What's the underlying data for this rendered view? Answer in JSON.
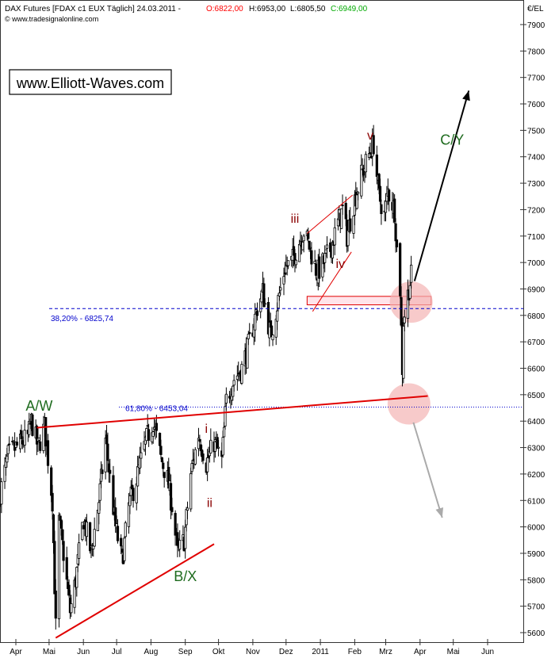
{
  "header": {
    "title": "DAX Futures [FDAX c1 EUX  Täglich] 24.03.2011 -",
    "open": "O:6822,00",
    "high": "H:6953,00",
    "low": "L:6805,50",
    "close": "C:6949,00",
    "copyright": "© www.tradesignalonline.com",
    "unit": "€/EL",
    "watermark": "www.Elliott-Waves.com"
  },
  "colors": {
    "open": "#ff0000",
    "close": "#00aa00",
    "wave_red": "#8b0000",
    "wave_green": "#1e6b1e",
    "trend_line": "#e00000",
    "fib_line": "#0000cc",
    "zone_fill": "#f4b4b4",
    "arrow_up": "#000000",
    "arrow_down": "#aaaaaa"
  },
  "chart_data": {
    "type": "candlestick",
    "title": "DAX Futures",
    "ylim": [
      5565,
      7980
    ],
    "yticks": [
      5600,
      5700,
      5800,
      5900,
      6000,
      6100,
      6200,
      6300,
      6400,
      6500,
      6600,
      6700,
      6800,
      6900,
      7000,
      7100,
      7200,
      7300,
      7400,
      7500,
      7600,
      7700,
      7800,
      7900
    ],
    "xticks": [
      "Apr",
      "Mai",
      "Jun",
      "Jul",
      "Aug",
      "Sep",
      "Okt",
      "Nov",
      "Dez",
      "2011",
      "Feb",
      "Mrz",
      "Apr",
      "Mai",
      "Jun"
    ],
    "xtick_dates": [
      "2010-04-01",
      "2010-05-01",
      "2010-06-01",
      "2010-07-01",
      "2010-08-01",
      "2010-09-01",
      "2010-10-01",
      "2010-11-01",
      "2010-12-01",
      "2011-01-01",
      "2011-02-01",
      "2011-03-01",
      "2011-04-01",
      "2011-05-01",
      "2011-06-01"
    ],
    "close_path": [
      [
        "2010-03-18",
        6130
      ],
      [
        "2010-03-25",
        6270
      ],
      [
        "2010-04-01",
        6300
      ],
      [
        "2010-04-12",
        6340
      ],
      [
        "2010-04-15",
        6400
      ],
      [
        "2010-04-21",
        6300
      ],
      [
        "2010-04-27",
        6380
      ],
      [
        "2010-05-04",
        6100
      ],
      [
        "2010-05-07",
        5620
      ],
      [
        "2010-05-10",
        6020
      ],
      [
        "2010-05-14",
        5900
      ],
      [
        "2010-05-20",
        5680
      ],
      [
        "2010-05-25",
        5800
      ],
      [
        "2010-06-01",
        6030
      ],
      [
        "2010-06-08",
        5900
      ],
      [
        "2010-06-15",
        6100
      ],
      [
        "2010-06-21",
        6330
      ],
      [
        "2010-06-30",
        6000
      ],
      [
        "2010-07-06",
        5870
      ],
      [
        "2010-07-12",
        6080
      ],
      [
        "2010-07-20",
        6200
      ],
      [
        "2010-07-27",
        6320
      ],
      [
        "2010-08-03",
        6400
      ],
      [
        "2010-08-10",
        6260
      ],
      [
        "2010-08-16",
        6180
      ],
      [
        "2010-08-20",
        6080
      ],
      [
        "2010-08-25",
        5900
      ],
      [
        "2010-08-31",
        5950
      ],
      [
        "2010-09-06",
        6200
      ],
      [
        "2010-09-13",
        6350
      ],
      [
        "2010-09-20",
        6240
      ],
      [
        "2010-09-27",
        6320
      ],
      [
        "2010-10-04",
        6250
      ],
      [
        "2010-10-08",
        6480
      ],
      [
        "2010-10-15",
        6560
      ],
      [
        "2010-10-22",
        6600
      ],
      [
        "2010-10-29",
        6700
      ],
      [
        "2010-11-05",
        6830
      ],
      [
        "2010-11-10",
        6890
      ],
      [
        "2010-11-17",
        6720
      ],
      [
        "2010-11-26",
        6900
      ],
      [
        "2010-11-30",
        6980
      ],
      [
        "2010-12-06",
        7000
      ],
      [
        "2010-12-13",
        7080
      ],
      [
        "2010-12-17",
        7120
      ],
      [
        "2010-12-22",
        7060
      ],
      [
        "2010-12-29",
        6960
      ],
      [
        "2011-01-04",
        7000
      ],
      [
        "2011-01-10",
        7050
      ],
      [
        "2011-01-17",
        7150
      ],
      [
        "2011-01-21",
        7200
      ],
      [
        "2011-01-25",
        7100
      ],
      [
        "2011-02-01",
        7240
      ],
      [
        "2011-02-07",
        7330
      ],
      [
        "2011-02-15",
        7420
      ],
      [
        "2011-02-18",
        7450
      ],
      [
        "2011-02-23",
        7250
      ],
      [
        "2011-02-28",
        7180
      ],
      [
        "2011-03-03",
        7270
      ],
      [
        "2011-03-09",
        7200
      ],
      [
        "2011-03-11",
        7050
      ],
      [
        "2011-03-14",
        6900
      ],
      [
        "2011-03-16",
        6600
      ],
      [
        "2011-03-17",
        6780
      ],
      [
        "2011-03-21",
        6880
      ],
      [
        "2011-03-24",
        6949
      ]
    ],
    "fib_levels": [
      {
        "label": "38,20% - 6825,74",
        "value": 6825.74
      },
      {
        "label": "61,80% - 6453,04",
        "value": 6453.04
      }
    ],
    "trend_lines": [
      {
        "from": [
          "2010-04-20",
          6375
        ],
        "to": [
          "2011-04-08",
          6495
        ]
      },
      {
        "from": [
          "2010-05-07",
          5580
        ],
        "to": [
          "2010-09-27",
          5935
        ]
      },
      {
        "from": [
          "2010-12-20",
          7110
        ],
        "to": [
          "2011-01-30",
          7255
        ]
      },
      {
        "from": [
          "2010-12-25",
          6815
        ],
        "to": [
          "2011-01-29",
          7040
        ]
      }
    ],
    "resistance_box": {
      "from": "2010-12-20",
      "to": "2011-04-11",
      "low": 6840,
      "high": 6872
    },
    "highlight_zones": [
      {
        "date": "2011-03-24",
        "value": 6850
      },
      {
        "date": "2011-03-22",
        "value": 6465
      }
    ],
    "arrows": [
      {
        "name": "up",
        "from": [
          "2011-03-27",
          6930
        ],
        "to": [
          "2011-05-15",
          7650
        ]
      },
      {
        "name": "down",
        "from": [
          "2011-03-26",
          6395
        ],
        "to": [
          "2011-04-21",
          6035
        ]
      }
    ],
    "wave_labels": [
      {
        "text": "A/W",
        "date": "2010-04-22",
        "value": 6440,
        "group": "green"
      },
      {
        "text": "B/X",
        "date": "2010-09-01",
        "value": 5795,
        "group": "green"
      },
      {
        "text": "C/Y",
        "date": "2011-04-30",
        "value": 7445,
        "group": "green"
      },
      {
        "text": "i",
        "date": "2010-09-20",
        "value": 6355,
        "group": "red"
      },
      {
        "text": "ii",
        "date": "2010-09-23",
        "value": 6075,
        "group": "red"
      },
      {
        "text": "iii",
        "date": "2010-12-09",
        "value": 7150,
        "group": "red"
      },
      {
        "text": "iv",
        "date": "2011-01-19",
        "value": 6980,
        "group": "red"
      },
      {
        "text": "v",
        "date": "2011-02-15",
        "value": 7465,
        "group": "red"
      }
    ]
  }
}
